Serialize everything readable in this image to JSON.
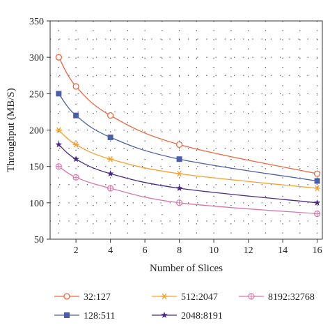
{
  "chart_data": {
    "type": "line",
    "title": "",
    "xlabel": "Number of Slices",
    "ylabel": "Throughput (MB/S)",
    "xlim": [
      0.5,
      16.3
    ],
    "ylim": [
      50,
      350
    ],
    "xticks": [
      2,
      4,
      6,
      8,
      10,
      12,
      14,
      16
    ],
    "yticks": [
      50,
      100,
      150,
      200,
      250,
      300,
      350
    ],
    "grid": true,
    "legend_position": "bottom",
    "x": [
      1,
      2,
      4,
      8,
      16
    ],
    "series": [
      {
        "name": "32:127",
        "values": [
          300,
          260,
          220,
          180,
          140
        ],
        "color": "#f0643c",
        "marker": "circle-open"
      },
      {
        "name": "128:511",
        "values": [
          250,
          220,
          190,
          160,
          130
        ],
        "color": "#4a5fa8",
        "marker": "square"
      },
      {
        "name": "512:2047",
        "values": [
          200,
          180,
          160,
          140,
          120
        ],
        "color": "#f5a030",
        "marker": "asterisk"
      },
      {
        "name": "2048:8191",
        "values": [
          180,
          160,
          140,
          120,
          100
        ],
        "color": "#4a2a86",
        "marker": "star"
      },
      {
        "name": "8192:32768",
        "values": [
          150,
          135,
          120,
          100,
          85
        ],
        "color": "#d878a8",
        "marker": "circle-plus"
      }
    ]
  }
}
